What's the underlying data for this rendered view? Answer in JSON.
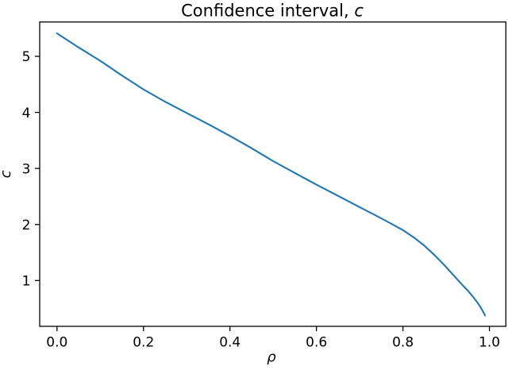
{
  "figure": {
    "background": "#ffffff",
    "title": {
      "prefix": "Confidence interval, ",
      "math": "c"
    }
  },
  "chart_data": {
    "type": "line",
    "title": "Confidence interval, c",
    "xlabel": "ρ",
    "ylabel": "c",
    "xlim": [
      -0.04,
      1.038
    ],
    "ylim": [
      0.183,
      5.613
    ],
    "grid": false,
    "legend": null,
    "axes_color": "#000000",
    "xticks": {
      "values": [
        0.0,
        0.2,
        0.4,
        0.6,
        0.8,
        1.0
      ],
      "labels": [
        "0.0",
        "0.2",
        "0.4",
        "0.6",
        "0.8",
        "1.0"
      ]
    },
    "yticks": {
      "values": [
        1,
        2,
        3,
        4,
        5
      ],
      "labels": [
        "1",
        "2",
        "3",
        "4",
        "5"
      ]
    },
    "series": [
      {
        "name": "confidence-interval-curve",
        "color": "#1f77b4",
        "line_width": 2.1,
        "x": [
          0.0,
          0.05,
          0.1,
          0.15,
          0.2,
          0.25,
          0.3,
          0.35,
          0.4,
          0.45,
          0.5,
          0.55,
          0.6,
          0.65,
          0.7,
          0.75,
          0.8,
          0.825,
          0.85,
          0.875,
          0.9,
          0.92,
          0.94,
          0.95,
          0.96,
          0.97,
          0.98,
          0.985,
          0.99
        ],
        "y": [
          5.41,
          5.16,
          4.92,
          4.66,
          4.41,
          4.19,
          3.99,
          3.79,
          3.58,
          3.36,
          3.13,
          2.92,
          2.71,
          2.51,
          2.31,
          2.11,
          1.9,
          1.77,
          1.62,
          1.44,
          1.24,
          1.07,
          0.9,
          0.82,
          0.73,
          0.63,
          0.52,
          0.45,
          0.38
        ]
      }
    ]
  }
}
